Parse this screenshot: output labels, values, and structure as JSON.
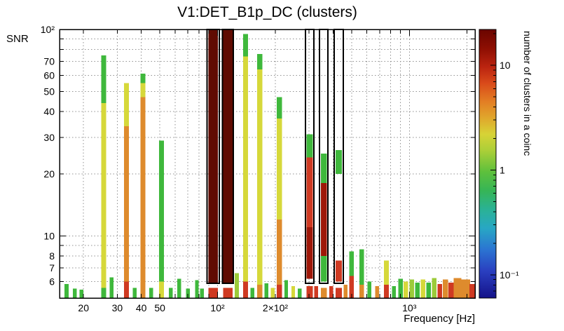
{
  "chart_data": {
    "type": "heatmap",
    "title": "V1:DET_B1p_DC (clusters)",
    "xlabel": "Frequency [Hz]",
    "ylabel": "SNR",
    "zlabel": "number of clusters in a coinc",
    "x_scale": "log",
    "y_scale": "log",
    "z_scale": "log",
    "xlim": [
      15,
      2200
    ],
    "ylim": [
      5,
      100
    ],
    "zlim": [
      0.06,
      22
    ],
    "grid": "dotted",
    "x_ticks": [
      {
        "v": 20,
        "label": "20"
      },
      {
        "v": 30,
        "label": "30"
      },
      {
        "v": 40,
        "label": "40"
      },
      {
        "v": 50,
        "label": "50"
      },
      {
        "v": 100,
        "label": "10²"
      },
      {
        "v": 200,
        "label": "2×10²"
      },
      {
        "v": 1000,
        "label": "10³"
      }
    ],
    "x_grid": [
      20,
      30,
      40,
      50,
      60,
      70,
      80,
      90,
      100,
      200,
      300,
      400,
      500,
      600,
      700,
      800,
      900,
      1000,
      2000
    ],
    "y_ticks": [
      {
        "v": 100,
        "label": "10²"
      },
      {
        "v": 70,
        "label": "70"
      },
      {
        "v": 60,
        "label": "60"
      },
      {
        "v": 50,
        "label": "50"
      },
      {
        "v": 40,
        "label": "40"
      },
      {
        "v": 30,
        "label": "30"
      },
      {
        "v": 20,
        "label": "20"
      },
      {
        "v": 10,
        "label": "10"
      },
      {
        "v": 8,
        "label": "8"
      },
      {
        "v": 7,
        "label": "7"
      },
      {
        "v": 6,
        "label": "6"
      }
    ],
    "y_grid": [
      6,
      7,
      8,
      9,
      10,
      20,
      30,
      40,
      50,
      60,
      70,
      80,
      90,
      100
    ],
    "z_ticks": [
      {
        "v": 10,
        "label": "10"
      },
      {
        "v": 1,
        "label": "1"
      },
      {
        "v": 0.1,
        "label": "10⁻¹"
      }
    ],
    "z_minor": [
      0.06,
      0.07,
      0.08,
      0.09,
      0.2,
      0.3,
      0.4,
      0.5,
      0.6,
      0.7,
      0.8,
      0.9,
      2,
      3,
      4,
      5,
      6,
      7,
      8,
      9,
      20
    ],
    "palette": {
      "green": "#3fb83c",
      "olive": "#9ccb3a",
      "yellow": "#d6d83a",
      "orange": "#de8b2d",
      "red": "#cf3a22",
      "darkred": "#9e1708",
      "maroon": "#600b02"
    },
    "colorbar_stops": [
      [
        0.0,
        "#6a0500"
      ],
      [
        0.07,
        "#8d0e02"
      ],
      [
        0.14,
        "#bb2410"
      ],
      [
        0.2,
        "#d94a1a"
      ],
      [
        0.27,
        "#e37f24"
      ],
      [
        0.33,
        "#e0a72c"
      ],
      [
        0.39,
        "#d7d336"
      ],
      [
        0.45,
        "#accf38"
      ],
      [
        0.53,
        "#5ec03c"
      ],
      [
        0.6,
        "#36b556"
      ],
      [
        0.67,
        "#2ab295"
      ],
      [
        0.74,
        "#28a7c4"
      ],
      [
        0.82,
        "#2b74d2"
      ],
      [
        0.9,
        "#2a3fc0"
      ],
      [
        1.0,
        "#141289"
      ]
    ],
    "box_snr": [
      5.9,
      100
    ],
    "boxes": [
      {
        "f_lo": 88,
        "f_hi": 102
      },
      {
        "f_lo": 106,
        "f_hi": 121
      },
      {
        "f_lo": 287,
        "f_hi": 318
      },
      {
        "f_lo": 340,
        "f_hi": 376
      },
      {
        "f_lo": 405,
        "f_hi": 452
      }
    ],
    "bars": [
      {
        "f": 16.3,
        "w": 0.022,
        "seg": [
          [
            5,
            5.85,
            "green"
          ]
        ]
      },
      {
        "f": 18.0,
        "w": 0.02,
        "seg": [
          [
            5,
            5.55,
            "green"
          ]
        ]
      },
      {
        "f": 19.5,
        "w": 0.02,
        "seg": [
          [
            5,
            5.5,
            "green"
          ]
        ]
      },
      {
        "f": 25.5,
        "w": 0.026,
        "seg": [
          [
            44,
            75,
            "green"
          ],
          [
            5.6,
            44,
            "yellow"
          ],
          [
            5,
            5.6,
            "green"
          ]
        ]
      },
      {
        "f": 28.0,
        "w": 0.02,
        "seg": [
          [
            5,
            6.3,
            "green"
          ]
        ]
      },
      {
        "f": 33.5,
        "w": 0.026,
        "seg": [
          [
            34,
            55,
            "yellow"
          ],
          [
            6,
            34,
            "orange"
          ],
          [
            5,
            6,
            "red"
          ]
        ]
      },
      {
        "f": 37.0,
        "w": 0.02,
        "seg": [
          [
            5,
            5.6,
            "green"
          ]
        ]
      },
      {
        "f": 40.8,
        "w": 0.026,
        "seg": [
          [
            55,
            61,
            "green"
          ],
          [
            47,
            55,
            "yellow"
          ],
          [
            5,
            47,
            "orange"
          ]
        ]
      },
      {
        "f": 45.0,
        "w": 0.02,
        "seg": [
          [
            5,
            5.6,
            "green"
          ]
        ]
      },
      {
        "f": 51.0,
        "w": 0.026,
        "seg": [
          [
            6,
            29,
            "green"
          ],
          [
            5,
            6,
            "yellow"
          ]
        ]
      },
      {
        "f": 57.0,
        "w": 0.02,
        "seg": [
          [
            5,
            5.6,
            "green"
          ]
        ]
      },
      {
        "f": 63.0,
        "w": 0.02,
        "seg": [
          [
            5,
            6.2,
            "green"
          ]
        ]
      },
      {
        "f": 70.0,
        "w": 0.02,
        "seg": [
          [
            5,
            5.55,
            "green"
          ]
        ]
      },
      {
        "f": 78.0,
        "w": 0.02,
        "seg": [
          [
            5,
            6.1,
            "green"
          ]
        ]
      },
      {
        "f": 83.0,
        "w": 0.02,
        "seg": [
          [
            5,
            5.55,
            "green"
          ]
        ]
      },
      {
        "f": 94.8,
        "w": 0.05,
        "seg": [
          [
            5.9,
            100,
            "maroon"
          ],
          [
            5,
            5.6,
            "red"
          ]
        ]
      },
      {
        "f": 113.2,
        "w": 0.05,
        "seg": [
          [
            5.9,
            100,
            "maroon"
          ],
          [
            5,
            5.6,
            "red"
          ]
        ]
      },
      {
        "f": 126,
        "w": 0.022,
        "seg": [
          [
            5,
            6.6,
            "olive"
          ]
        ]
      },
      {
        "f": 140,
        "w": 0.026,
        "seg": [
          [
            74,
            95,
            "green"
          ],
          [
            6,
            74,
            "yellow"
          ],
          [
            5,
            6,
            "red"
          ]
        ]
      },
      {
        "f": 152,
        "w": 0.02,
        "seg": [
          [
            5,
            5.6,
            "green"
          ]
        ]
      },
      {
        "f": 166,
        "w": 0.026,
        "seg": [
          [
            64,
            76,
            "green"
          ],
          [
            5.8,
            64,
            "yellow"
          ],
          [
            5,
            5.8,
            "orange"
          ]
        ]
      },
      {
        "f": 180,
        "w": 0.02,
        "seg": [
          [
            5,
            5.9,
            "green"
          ]
        ]
      },
      {
        "f": 194,
        "w": 0.02,
        "seg": [
          [
            5,
            5.6,
            "yellow"
          ]
        ]
      },
      {
        "f": 210,
        "w": 0.026,
        "seg": [
          [
            37,
            47,
            "green"
          ],
          [
            12,
            37,
            "yellow"
          ],
          [
            5.8,
            12,
            "orange"
          ],
          [
            5,
            5.8,
            "red"
          ]
        ]
      },
      {
        "f": 228,
        "w": 0.02,
        "seg": [
          [
            5,
            6.1,
            "green"
          ]
        ]
      },
      {
        "f": 248,
        "w": 0.02,
        "seg": [
          [
            5,
            5.7,
            "yellow"
          ]
        ]
      },
      {
        "f": 268,
        "w": 0.02,
        "seg": [
          [
            5,
            5.55,
            "green"
          ]
        ]
      },
      {
        "f": 302,
        "w": 0.032,
        "seg": [
          [
            24,
            31,
            "green"
          ],
          [
            11,
            24,
            "red"
          ],
          [
            6.2,
            11,
            "darkred"
          ],
          [
            5,
            5.7,
            "red"
          ]
        ]
      },
      {
        "f": 326,
        "w": 0.02,
        "seg": [
          [
            5,
            5.7,
            "red"
          ]
        ]
      },
      {
        "f": 358,
        "w": 0.032,
        "seg": [
          [
            18,
            25,
            "green"
          ],
          [
            8,
            18,
            "darkred"
          ],
          [
            6,
            8,
            "green"
          ],
          [
            5,
            5.6,
            "orange"
          ]
        ]
      },
      {
        "f": 392,
        "w": 0.02,
        "seg": [
          [
            5,
            5.7,
            "red"
          ]
        ]
      },
      {
        "f": 428,
        "w": 0.032,
        "seg": [
          [
            20,
            26,
            "green"
          ],
          [
            6,
            7.6,
            "red"
          ],
          [
            5,
            5.6,
            "red"
          ]
        ]
      },
      {
        "f": 465,
        "w": 0.02,
        "seg": [
          [
            5,
            5.8,
            "orange"
          ]
        ]
      },
      {
        "f": 500,
        "w": 0.024,
        "seg": [
          [
            6.4,
            8.4,
            "green"
          ],
          [
            5,
            6.4,
            "red"
          ]
        ]
      },
      {
        "f": 565,
        "w": 0.024,
        "seg": [
          [
            5.8,
            8.6,
            "green"
          ],
          [
            5,
            5.8,
            "orange"
          ]
        ]
      },
      {
        "f": 620,
        "w": 0.02,
        "seg": [
          [
            5,
            6.0,
            "green"
          ]
        ]
      },
      {
        "f": 680,
        "w": 0.02,
        "seg": [
          [
            5,
            5.7,
            "orange"
          ]
        ]
      },
      {
        "f": 760,
        "w": 0.026,
        "seg": [
          [
            5.8,
            7.6,
            "yellow"
          ],
          [
            5,
            5.8,
            "red"
          ]
        ]
      },
      {
        "f": 830,
        "w": 0.02,
        "seg": [
          [
            5,
            5.7,
            "green"
          ]
        ]
      },
      {
        "f": 900,
        "w": 0.024,
        "seg": [
          [
            5,
            6.2,
            "green"
          ]
        ]
      },
      {
        "f": 960,
        "w": 0.024,
        "seg": [
          [
            5,
            6.0,
            "yellow"
          ]
        ]
      },
      {
        "f": 1030,
        "w": 0.024,
        "seg": [
          [
            5,
            6.15,
            "olive"
          ]
        ]
      },
      {
        "f": 1100,
        "w": 0.024,
        "seg": [
          [
            5,
            5.95,
            "green"
          ]
        ]
      },
      {
        "f": 1180,
        "w": 0.024,
        "seg": [
          [
            5,
            6.15,
            "yellow"
          ]
        ]
      },
      {
        "f": 1260,
        "w": 0.024,
        "seg": [
          [
            5,
            5.95,
            "green"
          ]
        ]
      },
      {
        "f": 1350,
        "w": 0.024,
        "seg": [
          [
            5,
            6.25,
            "olive"
          ]
        ]
      },
      {
        "f": 1440,
        "w": 0.024,
        "seg": [
          [
            5,
            5.85,
            "red"
          ]
        ]
      },
      {
        "f": 1540,
        "w": 0.028,
        "seg": [
          [
            5,
            6.15,
            "orange"
          ]
        ]
      },
      {
        "f": 1650,
        "w": 0.028,
        "seg": [
          [
            5,
            5.95,
            "red"
          ]
        ]
      },
      {
        "f": 1780,
        "w": 0.04,
        "seg": [
          [
            5,
            6.25,
            "orange"
          ]
        ]
      },
      {
        "f": 1960,
        "w": 0.05,
        "seg": [
          [
            5,
            6.15,
            "orange"
          ]
        ]
      },
      {
        "f": 2130,
        "w": 0.03,
        "seg": [
          [
            5,
            5.85,
            "red"
          ]
        ]
      }
    ]
  }
}
